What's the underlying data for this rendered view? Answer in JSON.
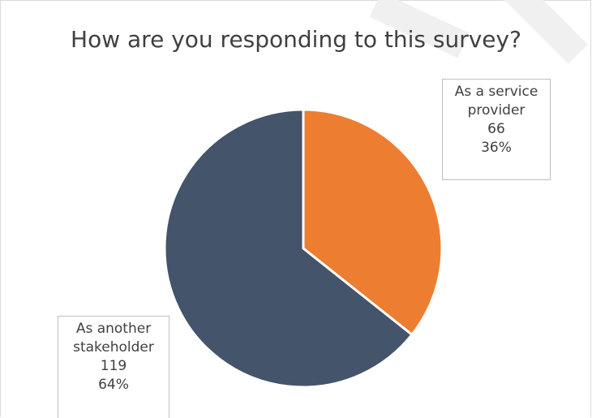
{
  "chart_data": {
    "type": "pie",
    "title": "How are you responding to this survey?",
    "slices": [
      {
        "label_lines": [
          "As a service",
          "provider"
        ],
        "value": 66,
        "percent": "36%",
        "color": "#ED7D31"
      },
      {
        "label_lines": [
          "As another",
          "stakeholder"
        ],
        "value": 119,
        "percent": "64%",
        "color": "#44546A"
      }
    ],
    "start_angle_deg": 0,
    "direction": "clockwise",
    "slice_border_color": "#ffffff",
    "legend": "none"
  }
}
